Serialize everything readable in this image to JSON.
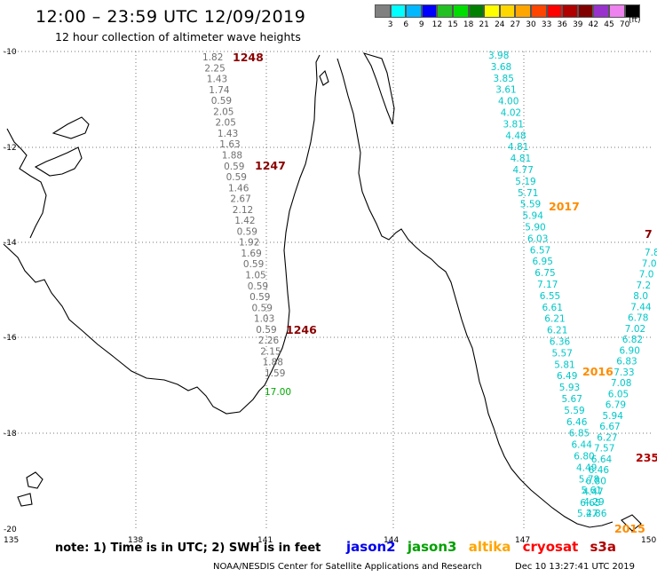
{
  "header": {
    "title": "12:00 – 23:59 UTC 12/09/2019",
    "subtitle": "12 hour collection of altimeter wave heights"
  },
  "legend": {
    "unit": "(ft)",
    "bins": [
      {
        "color": "#808080",
        "label": "3"
      },
      {
        "color": "#00ffff",
        "label": "6"
      },
      {
        "color": "#00b8ff",
        "label": "9"
      },
      {
        "color": "#0000ff",
        "label": "12"
      },
      {
        "color": "#22c022",
        "label": "15"
      },
      {
        "color": "#00dd00",
        "label": "18"
      },
      {
        "color": "#008000",
        "label": "21"
      },
      {
        "color": "#ffff00",
        "label": "24"
      },
      {
        "color": "#ffd700",
        "label": "27"
      },
      {
        "color": "#ffa500",
        "label": "30"
      },
      {
        "color": "#ff4500",
        "label": "33"
      },
      {
        "color": "#ff0000",
        "label": "36"
      },
      {
        "color": "#b00000",
        "label": "39"
      },
      {
        "color": "#800000",
        "label": "42"
      },
      {
        "color": "#9932cc",
        "label": "45"
      },
      {
        "color": "#ee82ee",
        "label": "70"
      },
      {
        "color": "#000000",
        "label": ""
      }
    ]
  },
  "axes": {
    "lon_labels": [
      "135",
      "138",
      "141",
      "144",
      "147",
      "150"
    ],
    "lat_labels": [
      "-10",
      "-12",
      "-14",
      "-16",
      "-18",
      "-20"
    ]
  },
  "tracks": {
    "gray_track": {
      "color": "#707070",
      "values": [
        "1.82",
        "2.25",
        "1.43",
        "1.74",
        "0.59",
        "2.05",
        "2.05",
        "1.43",
        "1.63",
        "1.88",
        "0.59",
        "0.59",
        "1.46",
        "2.67",
        "2.12",
        "1.42",
        "0.59",
        "1.92",
        "1.69",
        "0.59",
        "1.05",
        "0.59",
        "0.59",
        "0.59",
        "1.03",
        "0.59",
        "2.26",
        "2.15",
        "1.88",
        "1.59"
      ]
    },
    "green_point": {
      "color": "#00aa00",
      "value": "17.00"
    },
    "cyan_track": {
      "color": "#00c8c8",
      "values": [
        "3.98",
        "3.68",
        "3.85",
        "3.61",
        "4.00",
        "4.02",
        "3.81",
        "4.48",
        "4.81",
        "4.81",
        "4.77",
        "5.19",
        "5.71",
        "5.59",
        "5.94",
        "5.90",
        "6.03",
        "6.57",
        "6.95",
        "6.75",
        "7.17",
        "6.55",
        "6.61",
        "6.21",
        "6.21",
        "6.36",
        "5.57",
        "5.81",
        "6.49",
        "5.93",
        "5.67",
        "5.59",
        "6.46",
        "6.85",
        "6.44",
        "6.80",
        "4.49",
        "5.78",
        "5.61",
        "4.29",
        "2.86"
      ]
    },
    "right_track": {
      "color": "#00c8c8",
      "values": [
        "7.8",
        "7.0",
        "7.0",
        "7.2",
        "8.0",
        "7.44",
        "6.78",
        "7.02",
        "6.82",
        "6.90",
        "6.83",
        "7.33",
        "7.08",
        "6.05",
        "6.79",
        "5.94",
        "6.67",
        "6.27",
        "7.57",
        "6.64",
        "6.46",
        "6.80",
        "4.47",
        "6.65",
        "5.47"
      ]
    },
    "pass_labels": [
      {
        "text": "1248",
        "color": "#8b0000"
      },
      {
        "text": "1247",
        "color": "#8b0000"
      },
      {
        "text": "1246",
        "color": "#8b0000"
      },
      {
        "text": "2017",
        "color": "#ff8c00"
      },
      {
        "text": "2016",
        "color": "#ff8c00"
      },
      {
        "text": "2015",
        "color": "#ff8c00"
      },
      {
        "text": "235",
        "color": "#b00000"
      },
      {
        "text": "7",
        "color": "#8b0000"
      }
    ]
  },
  "footer": {
    "note": "note: 1) Time is in UTC; 2) SWH is in feet",
    "satellites": [
      {
        "name": "jason2",
        "color": "#0000ee"
      },
      {
        "name": "jason3",
        "color": "#00a000"
      },
      {
        "name": "altika",
        "color": "#ffa500"
      },
      {
        "name": "cryosat",
        "color": "#ff0000"
      },
      {
        "name": "s3a",
        "color": "#b00000"
      }
    ],
    "credit": "NOAA/NESDIS Center for Satellite Applications and Research",
    "timestamp": "Dec 10 13:27:41 UTC 2019"
  }
}
